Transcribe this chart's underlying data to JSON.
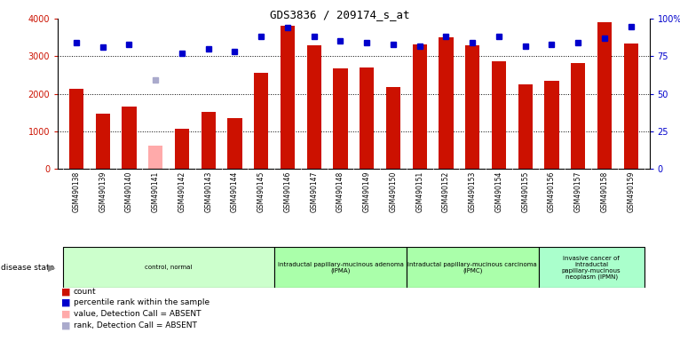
{
  "title": "GDS3836 / 209174_s_at",
  "samples": [
    "GSM490138",
    "GSM490139",
    "GSM490140",
    "GSM490141",
    "GSM490142",
    "GSM490143",
    "GSM490144",
    "GSM490145",
    "GSM490146",
    "GSM490147",
    "GSM490148",
    "GSM490149",
    "GSM490150",
    "GSM490151",
    "GSM490152",
    "GSM490153",
    "GSM490154",
    "GSM490155",
    "GSM490156",
    "GSM490157",
    "GSM490158",
    "GSM490159"
  ],
  "counts": [
    2130,
    1480,
    1670,
    620,
    1060,
    1510,
    1360,
    2570,
    3820,
    3300,
    2680,
    2700,
    2180,
    3310,
    3500,
    3290,
    2870,
    2240,
    2350,
    2810,
    3910,
    3340
  ],
  "absent_indices": [
    3
  ],
  "ranks": [
    84,
    81,
    83,
    59,
    77,
    80,
    78,
    88,
    94,
    88,
    85,
    84,
    83,
    82,
    88,
    84,
    88,
    82,
    83,
    84,
    87,
    95
  ],
  "absent_rank_index": 3,
  "bar_color": "#cc1100",
  "absent_bar_color": "#ffaaaa",
  "rank_color": "#0000cc",
  "absent_rank_color": "#aaaacc",
  "ylim_left": [
    0,
    4000
  ],
  "ylim_right": [
    0,
    100
  ],
  "yticks_left": [
    0,
    1000,
    2000,
    3000,
    4000
  ],
  "yticks_right": [
    0,
    25,
    50,
    75,
    100
  ],
  "group_starts": [
    0,
    8,
    13,
    18
  ],
  "group_ends": [
    7,
    12,
    17,
    21
  ],
  "group_colors": [
    "#ccffcc",
    "#aaffaa",
    "#aaffaa",
    "#aaffcc"
  ],
  "group_labels": [
    "control, normal",
    "intraductal papillary-mucinous adenoma\n(IPMA)",
    "intraductal papillary-mucinous carcinoma\n(IPMC)",
    "invasive cancer of\nintraductal\npapillary-mucinous\nneoplasm (IPMN)"
  ],
  "xtick_bg": "#cccccc",
  "legend_colors": [
    "#cc1100",
    "#0000cc",
    "#ffaaaa",
    "#aaaacc"
  ],
  "legend_labels": [
    "count",
    "percentile rank within the sample",
    "value, Detection Call = ABSENT",
    "rank, Detection Call = ABSENT"
  ]
}
